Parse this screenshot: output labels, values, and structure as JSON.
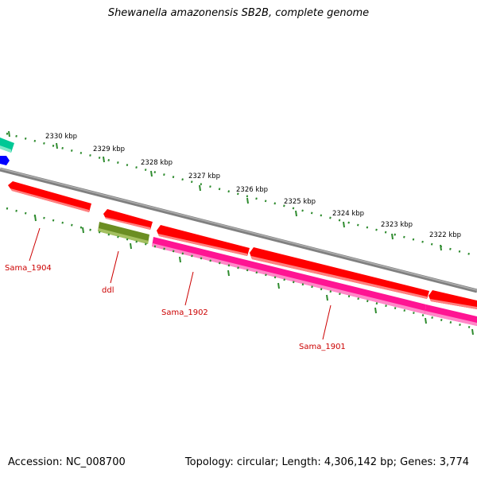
{
  "title": "Shewanella amazonensis SB2B, complete genome",
  "footer": {
    "accession": "Accession: NC_008700",
    "summary": "Topology: circular; Length: 4,306,142 bp; Genes: 3,774"
  },
  "colors": {
    "backbone": "#808080",
    "tick": "#2e8b2e",
    "gene_red": "#ff0000",
    "gene_olive": "#6b8e23",
    "gene_pink": "#ff1493",
    "gene_teal": "#00c896",
    "gene_blue": "#0000ff",
    "label_red": "#cc0000"
  },
  "kbp_labels": [
    "2330 kbp",
    "2329 kbp",
    "2328 kbp",
    "2327 kbp",
    "2326 kbp",
    "2325 kbp",
    "2324 kbp",
    "2323 kbp",
    "2322 kbp"
  ],
  "genes": [
    {
      "name": "Sama_1904",
      "color": "red"
    },
    {
      "name": "ddl",
      "color": "olive"
    },
    {
      "name": "Sama_1902",
      "color": "pink"
    },
    {
      "name": "Sama_1901",
      "color": "pink"
    }
  ]
}
